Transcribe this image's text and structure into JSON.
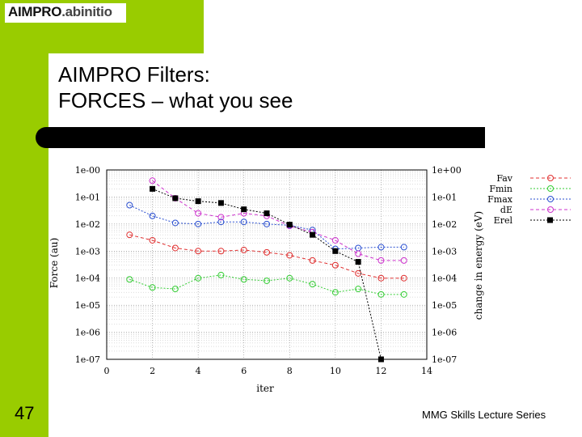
{
  "logo": {
    "main": "AIMPRO",
    "suffix": ".abinitio"
  },
  "title": {
    "line1": "AIMPRO Filters:",
    "line2": "FORCES – what you see"
  },
  "page_number": "47",
  "footer": "MMG Skills Lecture Series",
  "colors": {
    "green_band": "#99cc00",
    "red": "#e03030",
    "green": "#33cc33",
    "blue": "#2a4fd0",
    "magenta": "#cc33cc",
    "black": "#000000"
  },
  "chart_data": {
    "type": "line",
    "xlabel": "iter",
    "ylabel": "Force (au)",
    "y2label": "change in energy (eV)",
    "xlim": [
      0,
      14
    ],
    "x_ticks": [
      "0",
      "2",
      "4",
      "6",
      "8",
      "10",
      "12",
      "14"
    ],
    "ylim_log10": [
      -7,
      0
    ],
    "y_ticks": [
      "1e-00",
      "1e-01",
      "1e-02",
      "1e-03",
      "1e-04",
      "1e-05",
      "1e-06",
      "1e-07"
    ],
    "y2_ticks": [
      "1e+00",
      "1e-01",
      "1e-02",
      "1e-03",
      "1e-04",
      "1e-05",
      "1e-06",
      "1e-07"
    ],
    "grid": true,
    "legend_position": "right",
    "series": [
      {
        "name": "Fav",
        "color": "#e03030",
        "marker": "circle",
        "line": "dashed",
        "x": [
          1,
          2,
          3,
          4,
          5,
          6,
          7,
          8,
          9,
          10,
          11,
          12,
          13
        ],
        "y": [
          0.004,
          0.0025,
          0.0013,
          0.001,
          0.001,
          0.0011,
          0.0009,
          0.0007,
          0.00045,
          0.0003,
          0.00015,
          0.0001,
          0.0001
        ]
      },
      {
        "name": "Fmin",
        "color": "#33cc33",
        "marker": "circle",
        "line": "dotted",
        "x": [
          1,
          2,
          3,
          4,
          5,
          6,
          7,
          8,
          9,
          10,
          11,
          12,
          13
        ],
        "y": [
          9e-05,
          4.5e-05,
          4e-05,
          0.0001,
          0.00013,
          9e-05,
          8e-05,
          0.0001,
          6e-05,
          3e-05,
          4e-05,
          2.5e-05,
          2.5e-05
        ]
      },
      {
        "name": "Fmax",
        "color": "#2a4fd0",
        "marker": "circle",
        "line": "dotted",
        "x": [
          1,
          2,
          3,
          4,
          5,
          6,
          7,
          8,
          9,
          10,
          11,
          12,
          13
        ],
        "y": [
          0.05,
          0.02,
          0.011,
          0.01,
          0.012,
          0.012,
          0.01,
          0.009,
          0.006,
          0.0012,
          0.0013,
          0.0014,
          0.0014
        ]
      },
      {
        "name": "dE",
        "color": "#cc33cc",
        "marker": "circle",
        "line": "dashed",
        "x": [
          2,
          3,
          4,
          5,
          6,
          7,
          8,
          9,
          10,
          11,
          12,
          13
        ],
        "y": [
          0.4,
          0.09,
          0.025,
          0.018,
          0.025,
          0.02,
          0.0085,
          0.005,
          0.0025,
          0.0008,
          0.00045,
          0.00045
        ]
      },
      {
        "name": "Erel",
        "color": "#000000",
        "marker": "square",
        "line": "dotted",
        "x": [
          2,
          3,
          4,
          5,
          6,
          7,
          8,
          9,
          10,
          11,
          12
        ],
        "y": [
          0.2,
          0.09,
          0.07,
          0.06,
          0.035,
          0.025,
          0.0095,
          0.004,
          0.001,
          0.0004,
          1e-07
        ]
      }
    ]
  }
}
